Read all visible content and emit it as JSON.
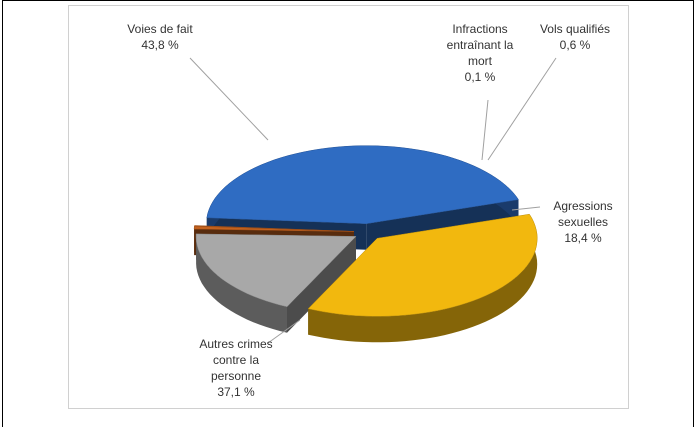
{
  "chart_data": {
    "type": "pie",
    "categories": [
      "Voies de fait",
      "Infractions entraînant la mort",
      "Vols qualifiés",
      "Agressions sexuelles",
      "Autres crimes contre la personne"
    ],
    "values": [
      43.8,
      0.1,
      0.6,
      18.4,
      37.1
    ],
    "value_labels": [
      "43,8 %",
      "0,1 %",
      "0,6 %",
      "18,4 %",
      "37,1 %"
    ],
    "colors": [
      "#2f6cc2",
      "#c4621e",
      "#c4621e",
      "#a8a8a8",
      "#f2b80e"
    ],
    "exploded": true,
    "three_d": true
  }
}
